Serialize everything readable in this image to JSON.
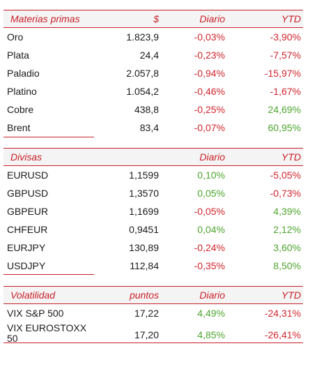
{
  "materias": {
    "headers": [
      "Materias primas",
      "$",
      "Diario",
      "YTD"
    ],
    "rows": [
      {
        "name": "Oro",
        "value": "1.823,9",
        "daily": "-0,03%",
        "ytd": "-3,90%",
        "daily_sign": "neg",
        "ytd_sign": "neg"
      },
      {
        "name": "Plata",
        "value": "24,4",
        "daily": "-0,23%",
        "ytd": "-7,57%",
        "daily_sign": "neg",
        "ytd_sign": "neg"
      },
      {
        "name": "Paladio",
        "value": "2.057,8",
        "daily": "-0,94%",
        "ytd": "-15,97%",
        "daily_sign": "neg",
        "ytd_sign": "neg"
      },
      {
        "name": "Platino",
        "value": "1.054,2",
        "daily": "-0,46%",
        "ytd": "-1,67%",
        "daily_sign": "neg",
        "ytd_sign": "neg"
      },
      {
        "name": "Cobre",
        "value": "438,8",
        "daily": "-0,25%",
        "ytd": "24,69%",
        "daily_sign": "neg",
        "ytd_sign": "pos"
      },
      {
        "name": "Brent",
        "value": "83,4",
        "daily": "-0,07%",
        "ytd": "60,95%",
        "daily_sign": "neg",
        "ytd_sign": "pos"
      }
    ]
  },
  "divisas": {
    "headers": [
      "Divisas",
      "",
      "Diario",
      "YTD"
    ],
    "rows": [
      {
        "name": "EURUSD",
        "value": "1,1599",
        "daily": "0,10%",
        "ytd": "-5,05%",
        "daily_sign": "pos",
        "ytd_sign": "neg"
      },
      {
        "name": "GBPUSD",
        "value": "1,3570",
        "daily": "0,05%",
        "ytd": "-0,73%",
        "daily_sign": "pos",
        "ytd_sign": "neg"
      },
      {
        "name": "GBPEUR",
        "value": "1,1699",
        "daily": "-0,05%",
        "ytd": "4,39%",
        "daily_sign": "neg",
        "ytd_sign": "pos"
      },
      {
        "name": "CHFEUR",
        "value": "0,9451",
        "daily": "0,04%",
        "ytd": "2,12%",
        "daily_sign": "pos",
        "ytd_sign": "pos"
      },
      {
        "name": "EURJPY",
        "value": "130,89",
        "daily": "-0,24%",
        "ytd": "3,60%",
        "daily_sign": "neg",
        "ytd_sign": "pos"
      },
      {
        "name": "USDJPY",
        "value": "112,84",
        "daily": "-0,35%",
        "ytd": "8,50%",
        "daily_sign": "neg",
        "ytd_sign": "pos"
      }
    ]
  },
  "volatilidad": {
    "headers": [
      "Volatilidad",
      "puntos",
      "Diario",
      "YTD"
    ],
    "rows": [
      {
        "name": "VIX S&P 500",
        "value": "17,22",
        "daily": "4,49%",
        "ytd": "-24,31%",
        "daily_sign": "pos",
        "ytd_sign": "neg"
      },
      {
        "name": "VIX EUROSTOXX 50",
        "value": "17,20",
        "daily": "4,85%",
        "ytd": "-26,41%",
        "daily_sign": "pos",
        "ytd_sign": "neg"
      }
    ]
  },
  "colors": {
    "accent_red": "#c8202a",
    "negative": "#d0262e",
    "positive": "#4ea52e",
    "header_bg": "#f4f4f4"
  }
}
